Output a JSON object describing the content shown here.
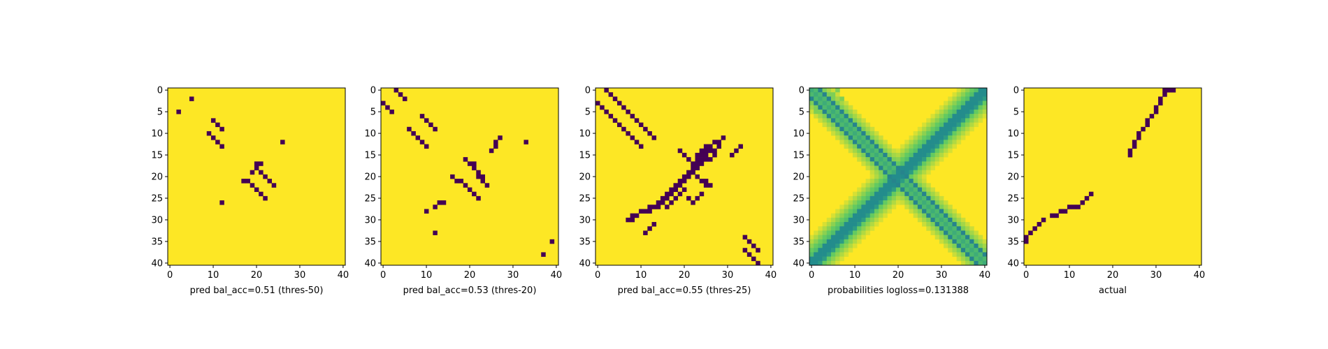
{
  "figure": {
    "colors": {
      "high": "#fde725",
      "low": "#440154",
      "axis": "#000000"
    }
  },
  "chart_data": [
    {
      "type": "heatmap",
      "colormap": "viridis",
      "title": "",
      "xlabel": "pred bal_acc=0.51 (thres-50)",
      "ylabel": "",
      "xlim": [
        0,
        40
      ],
      "ylim": [
        40,
        0
      ],
      "x_ticks": [
        0,
        10,
        20,
        30,
        40
      ],
      "y_ticks": [
        0,
        5,
        10,
        15,
        20,
        25,
        30,
        35,
        40
      ],
      "matrix_size": 41,
      "background_value": 1,
      "low_cells": [
        [
          2,
          5
        ],
        [
          5,
          2
        ],
        [
          10,
          7
        ],
        [
          11,
          8
        ],
        [
          12,
          9
        ],
        [
          9,
          10
        ],
        [
          10,
          11
        ],
        [
          11,
          12
        ],
        [
          12,
          13
        ],
        [
          26,
          12
        ],
        [
          20,
          17
        ],
        [
          21,
          17
        ],
        [
          20,
          18
        ],
        [
          19,
          19
        ],
        [
          21,
          19
        ],
        [
          22,
          20
        ],
        [
          17,
          21
        ],
        [
          18,
          21
        ],
        [
          23,
          21
        ],
        [
          19,
          22
        ],
        [
          24,
          22
        ],
        [
          20,
          23
        ],
        [
          21,
          24
        ],
        [
          22,
          25
        ],
        [
          12,
          26
        ]
      ]
    },
    {
      "type": "heatmap",
      "colormap": "viridis",
      "title": "",
      "xlabel": "pred bal_acc=0.53 (thres-20)",
      "ylabel": "",
      "xlim": [
        0,
        40
      ],
      "ylim": [
        40,
        0
      ],
      "x_ticks": [
        0,
        10,
        20,
        30,
        40
      ],
      "y_ticks": [
        0,
        5,
        10,
        15,
        20,
        25,
        30,
        35,
        40
      ],
      "matrix_size": 41,
      "background_value": 1,
      "low_cells": [
        [
          3,
          0
        ],
        [
          4,
          1
        ],
        [
          5,
          2
        ],
        [
          0,
          3
        ],
        [
          1,
          4
        ],
        [
          2,
          5
        ],
        [
          9,
          6
        ],
        [
          10,
          7
        ],
        [
          11,
          8
        ],
        [
          12,
          9
        ],
        [
          6,
          9
        ],
        [
          7,
          10
        ],
        [
          8,
          11
        ],
        [
          9,
          12
        ],
        [
          10,
          13
        ],
        [
          27,
          11
        ],
        [
          26,
          12
        ],
        [
          33,
          12
        ],
        [
          26,
          13
        ],
        [
          25,
          14
        ],
        [
          19,
          16
        ],
        [
          20,
          17
        ],
        [
          21,
          17
        ],
        [
          21,
          18
        ],
        [
          22,
          19
        ],
        [
          16,
          20
        ],
        [
          22,
          20
        ],
        [
          23,
          20
        ],
        [
          17,
          21
        ],
        [
          18,
          21
        ],
        [
          23,
          21
        ],
        [
          19,
          22
        ],
        [
          24,
          22
        ],
        [
          20,
          23
        ],
        [
          21,
          24
        ],
        [
          22,
          25
        ],
        [
          13,
          26
        ],
        [
          14,
          26
        ],
        [
          12,
          27
        ],
        [
          10,
          28
        ],
        [
          12,
          33
        ],
        [
          39,
          35
        ],
        [
          37,
          38
        ]
      ]
    },
    {
      "type": "heatmap",
      "colormap": "viridis",
      "title": "",
      "xlabel": "pred bal_acc=0.55 (thres-25)",
      "ylabel": "",
      "xlim": [
        0,
        40
      ],
      "ylim": [
        40,
        0
      ],
      "x_ticks": [
        0,
        10,
        20,
        30,
        40
      ],
      "y_ticks": [
        0,
        5,
        10,
        15,
        20,
        25,
        30,
        35,
        40
      ],
      "matrix_size": 41,
      "background_value": 1,
      "low_cells": [
        [
          2,
          0
        ],
        [
          3,
          1
        ],
        [
          4,
          2
        ],
        [
          5,
          3
        ],
        [
          6,
          4
        ],
        [
          7,
          5
        ],
        [
          8,
          6
        ],
        [
          9,
          7
        ],
        [
          10,
          8
        ],
        [
          11,
          9
        ],
        [
          12,
          10
        ],
        [
          13,
          11
        ],
        [
          0,
          3
        ],
        [
          1,
          4
        ],
        [
          2,
          5
        ],
        [
          3,
          6
        ],
        [
          4,
          7
        ],
        [
          5,
          8
        ],
        [
          6,
          9
        ],
        [
          7,
          10
        ],
        [
          8,
          11
        ],
        [
          9,
          12
        ],
        [
          10,
          13
        ],
        [
          29,
          11
        ],
        [
          28,
          13
        ],
        [
          27,
          14
        ],
        [
          27,
          15
        ],
        [
          26,
          16
        ],
        [
          27,
          12
        ],
        [
          28,
          12
        ],
        [
          25,
          13
        ],
        [
          26,
          13
        ],
        [
          24,
          14
        ],
        [
          25,
          14
        ],
        [
          26,
          14
        ],
        [
          23,
          15
        ],
        [
          24,
          15
        ],
        [
          25,
          15
        ],
        [
          23,
          16
        ],
        [
          24,
          16
        ],
        [
          25,
          16
        ],
        [
          23,
          17
        ],
        [
          24,
          17
        ],
        [
          22,
          18
        ],
        [
          23,
          18
        ],
        [
          21,
          19
        ],
        [
          22,
          19
        ],
        [
          20,
          20
        ],
        [
          21,
          20
        ],
        [
          19,
          21
        ],
        [
          20,
          21
        ],
        [
          18,
          22
        ],
        [
          19,
          22
        ],
        [
          17,
          23
        ],
        [
          18,
          23
        ],
        [
          16,
          24
        ],
        [
          17,
          24
        ],
        [
          15,
          25
        ],
        [
          16,
          25
        ],
        [
          14,
          26
        ],
        [
          15,
          26
        ],
        [
          12,
          27
        ],
        [
          13,
          27
        ],
        [
          14,
          27
        ],
        [
          10,
          28
        ],
        [
          11,
          28
        ],
        [
          12,
          28
        ],
        [
          8,
          29
        ],
        [
          9,
          29
        ],
        [
          7,
          30
        ],
        [
          8,
          30
        ],
        [
          19,
          14
        ],
        [
          20,
          15
        ],
        [
          21,
          16
        ],
        [
          22,
          17
        ],
        [
          22,
          19
        ],
        [
          23,
          20
        ],
        [
          24,
          21
        ],
        [
          25,
          22
        ],
        [
          20,
          23
        ],
        [
          19,
          24
        ],
        [
          18,
          25
        ],
        [
          17,
          26
        ],
        [
          16,
          27
        ],
        [
          25,
          21
        ],
        [
          26,
          22
        ],
        [
          24,
          24
        ],
        [
          23,
          25
        ],
        [
          32,
          14
        ],
        [
          33,
          13
        ],
        [
          31,
          15
        ],
        [
          21,
          25
        ],
        [
          22,
          26
        ],
        [
          13,
          31
        ],
        [
          12,
          32
        ],
        [
          11,
          33
        ],
        [
          34,
          34
        ],
        [
          35,
          35
        ],
        [
          36,
          36
        ],
        [
          37,
          37
        ],
        [
          34,
          37
        ],
        [
          35,
          38
        ],
        [
          36,
          39
        ],
        [
          37,
          40
        ]
      ]
    },
    {
      "type": "heatmap",
      "colormap": "viridis",
      "title": "",
      "xlabel": "probabilities logloss=0.131388",
      "ylabel": "",
      "xlim": [
        0,
        40
      ],
      "ylim": [
        40,
        0
      ],
      "x_ticks": [
        0,
        10,
        20,
        30,
        40
      ],
      "y_ticks": [
        0,
        5,
        10,
        15,
        20,
        25,
        30,
        35,
        40
      ],
      "matrix_size": 41,
      "background_value": 1
    },
    {
      "type": "heatmap",
      "colormap": "viridis",
      "title": "",
      "xlabel": "actual",
      "ylabel": "",
      "xlim": [
        0,
        40
      ],
      "ylim": [
        40,
        0
      ],
      "x_ticks": [
        0,
        10,
        20,
        30,
        40
      ],
      "y_ticks": [
        0,
        5,
        10,
        15,
        20,
        25,
        30,
        35,
        40
      ],
      "matrix_size": 41,
      "background_value": 1,
      "low_cells": [
        [
          32,
          0
        ],
        [
          33,
          0
        ],
        [
          34,
          0
        ],
        [
          32,
          1
        ],
        [
          31,
          2
        ],
        [
          31,
          3
        ],
        [
          30,
          4
        ],
        [
          30,
          5
        ],
        [
          29,
          6
        ],
        [
          28,
          7
        ],
        [
          28,
          8
        ],
        [
          27,
          9
        ],
        [
          26,
          10
        ],
        [
          26,
          11
        ],
        [
          25,
          12
        ],
        [
          25,
          13
        ],
        [
          24,
          14
        ],
        [
          24,
          15
        ],
        [
          15,
          24
        ],
        [
          14,
          25
        ],
        [
          13,
          26
        ],
        [
          12,
          27
        ],
        [
          11,
          27
        ],
        [
          10,
          27
        ],
        [
          9,
          28
        ],
        [
          8,
          28
        ],
        [
          7,
          29
        ],
        [
          6,
          29
        ],
        [
          4,
          30
        ],
        [
          3,
          31
        ],
        [
          2,
          32
        ],
        [
          1,
          33
        ],
        [
          0,
          34
        ],
        [
          0,
          35
        ]
      ]
    }
  ]
}
